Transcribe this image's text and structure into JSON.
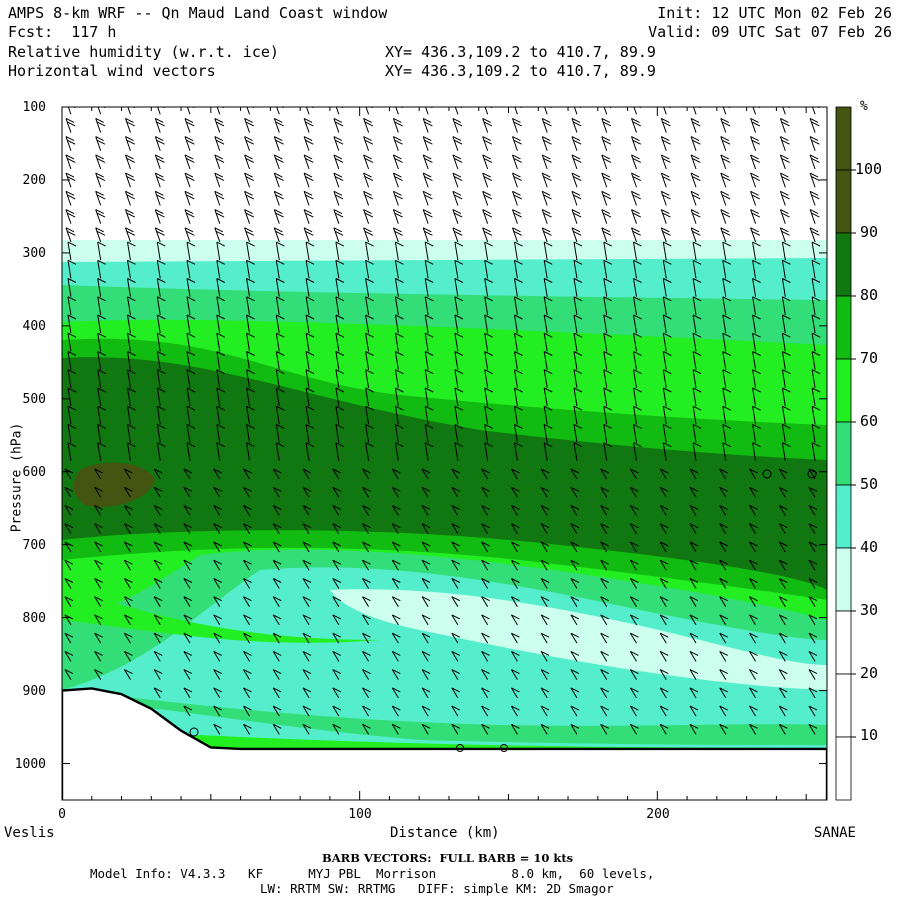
{
  "header": {
    "title": "AMPS 8-km WRF -- Qn Maud Land Coast window",
    "fcst": "Fcst:  117 h",
    "field1": "Relative humidity (w.r.t. ice)",
    "field2": "Horizontal wind vectors",
    "init": "Init: 12 UTC Mon 02 Feb 26",
    "valid": "Valid: 09 UTC Sat 07 Feb 26",
    "xy1": "XY= 436.3,109.2 to 410.7, 89.9",
    "xy2": "XY= 436.3,109.2 to 410.7, 89.9"
  },
  "chart_data": {
    "type": "cross-section",
    "title": "Relative humidity (w.r.t. ice) and horizontal wind vectors",
    "ylabel": "Pressure (hPa)",
    "xlabel": "Distance (km)",
    "ylim": [
      1050,
      100
    ],
    "xlim": [
      0,
      257
    ],
    "yticks": [
      100,
      200,
      300,
      400,
      500,
      600,
      700,
      800,
      900,
      1000
    ],
    "xticks": [
      0,
      100,
      200
    ],
    "x_left_label": "Veslis",
    "x_right_label": "SANAE",
    "colorbar": {
      "unit": "%",
      "levels": [
        10,
        20,
        30,
        40,
        50,
        60,
        70,
        80,
        90,
        100
      ],
      "colors": [
        "#ffffff",
        "#ffffff",
        "#ffffff",
        "#ccffee",
        "#55eecc",
        "#33dd77",
        "#22ee22",
        "#11bb11",
        "#117711",
        "#445511",
        "#445511"
      ]
    },
    "terrain_hpa": [
      [
        0,
        900
      ],
      [
        10,
        897
      ],
      [
        20,
        905
      ],
      [
        30,
        925
      ],
      [
        40,
        955
      ],
      [
        50,
        978
      ],
      [
        60,
        980
      ],
      [
        100,
        980
      ],
      [
        257,
        980
      ]
    ]
  },
  "footer": {
    "barb": "BARB VECTORS:  FULL BARB = 10 kts",
    "model": "Model Info: V4.3.3   KF      MYJ PBL  Morrison          8.0 km,  60 levels,",
    "physics": "LW: RRTM SW: RRTMG   DIFF: simple KM: 2D Smagor"
  }
}
